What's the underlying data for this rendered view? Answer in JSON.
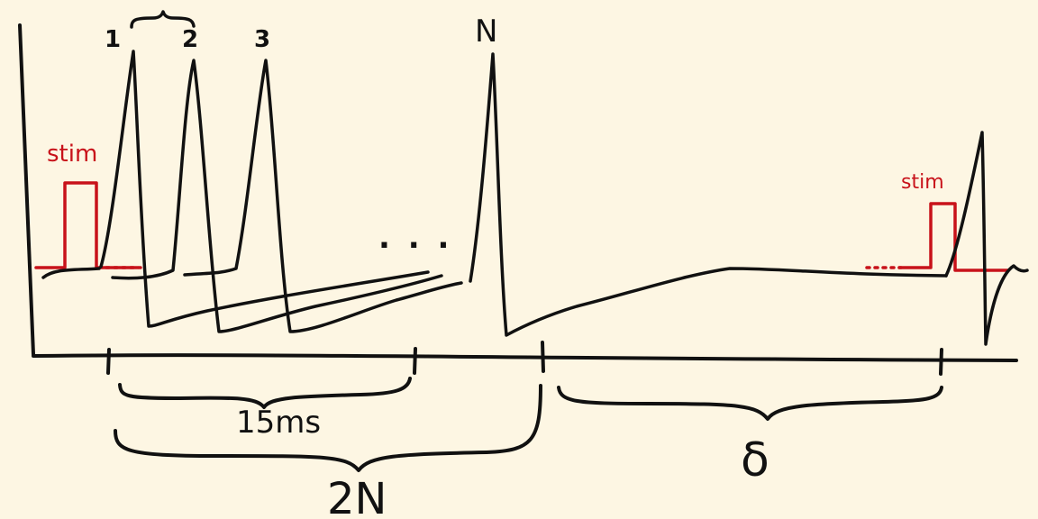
{
  "diagram": {
    "labels": {
      "spike_1": "1",
      "spike_2": "2",
      "spike_3": "3",
      "spike_n": "N",
      "ellipsis": ". . .",
      "stim_left": "stim",
      "stim_right": "stim",
      "interval_15ms": "15ms",
      "interval_2n": "2N",
      "interval_delta": "δ"
    },
    "colors": {
      "background": "#fdf6e3",
      "ink": "#111111",
      "stim": "#c8121a"
    }
  }
}
